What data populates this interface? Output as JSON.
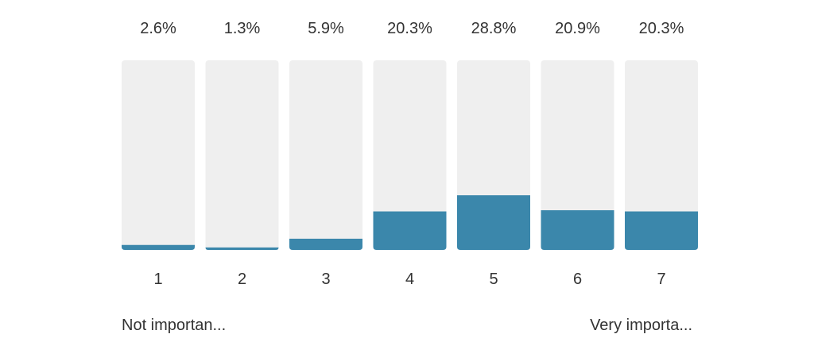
{
  "chart_data": {
    "type": "bar",
    "categories": [
      "1",
      "2",
      "3",
      "4",
      "5",
      "6",
      "7"
    ],
    "values": [
      2.6,
      1.3,
      5.9,
      20.3,
      28.8,
      20.9,
      20.3
    ],
    "value_labels": [
      "2.6%",
      "1.3%",
      "5.9%",
      "20.3%",
      "28.8%",
      "20.9%",
      "20.3%"
    ],
    "ylim": [
      0,
      100
    ],
    "grid": false,
    "legend": "none"
  },
  "scale": {
    "low_label": "Not importan...",
    "high_label": "Very importa..."
  },
  "colors": {
    "bar_fill": "#3b87ab",
    "track": "#efefef",
    "text": "#333333"
  }
}
